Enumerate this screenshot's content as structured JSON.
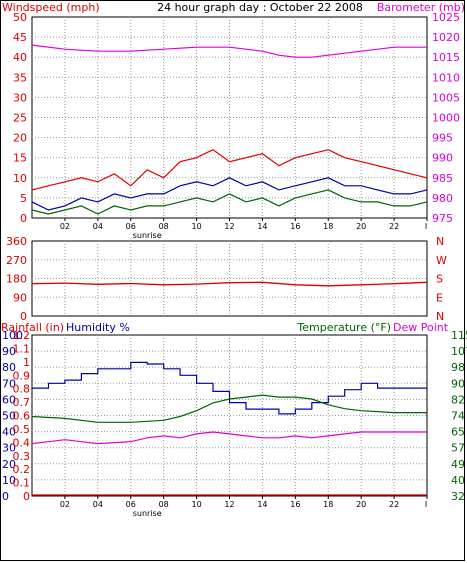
{
  "title": "24 hour graph day : October 22 2008",
  "x_ticks": [
    "02",
    "04",
    "06",
    "08",
    "10",
    "12",
    "14",
    "16",
    "18",
    "20",
    "22",
    "I"
  ],
  "sunrise_label": "sunrise",
  "chart_data": [
    {
      "type": "line",
      "title": "24 hour graph day : October 22 2008",
      "left_label": "Windspeed (mph)",
      "right_label": "Barometer (mb)",
      "left_ticks": [
        "0",
        "5",
        "10",
        "15",
        "20",
        "25",
        "30",
        "35",
        "40",
        "45",
        "50"
      ],
      "right_ticks": [
        "975",
        "980",
        "985",
        "990",
        "995",
        "1000",
        "1005",
        "1010",
        "1015",
        "1020",
        "1025"
      ],
      "ylim_left": [
        0,
        50
      ],
      "ylim_right": [
        975,
        1025
      ],
      "x_hours": [
        0,
        24
      ],
      "colors": {
        "gust": "#dd0000",
        "average": "#0000aa",
        "low": "#006600",
        "barometer": "#dd00dd"
      },
      "series": [
        {
          "axis": "right",
          "color": "#dd00dd",
          "x": [
            0,
            2,
            4,
            6,
            8,
            10,
            12,
            14,
            15,
            16,
            17,
            18,
            20,
            22,
            24
          ],
          "values": [
            1018,
            1017,
            1016.5,
            1016.5,
            1017,
            1017.5,
            1017.5,
            1016.5,
            1015.5,
            1015,
            1015,
            1015.5,
            1016.5,
            1017.5,
            1017.5
          ]
        },
        {
          "axis": "left",
          "color": "#dd0000",
          "x": [
            0,
            1,
            2,
            3,
            4,
            5,
            6,
            7,
            8,
            9,
            10,
            11,
            12,
            13,
            14,
            15,
            16,
            17,
            18,
            19,
            20,
            21,
            22,
            23,
            24
          ],
          "values": [
            7,
            8,
            9,
            10,
            9,
            11,
            8,
            12,
            10,
            14,
            15,
            17,
            14,
            15,
            16,
            13,
            15,
            16,
            17,
            15,
            14,
            13,
            12,
            11,
            10
          ]
        },
        {
          "axis": "left",
          "color": "#0000aa",
          "x": [
            0,
            1,
            2,
            3,
            4,
            5,
            6,
            7,
            8,
            9,
            10,
            11,
            12,
            13,
            14,
            15,
            16,
            17,
            18,
            19,
            20,
            21,
            22,
            23,
            24
          ],
          "values": [
            4,
            2,
            3,
            5,
            4,
            6,
            5,
            6,
            6,
            8,
            9,
            8,
            10,
            8,
            9,
            7,
            8,
            9,
            10,
            8,
            8,
            7,
            6,
            6,
            7
          ]
        },
        {
          "axis": "left",
          "color": "#006600",
          "x": [
            0,
            1,
            2,
            3,
            4,
            5,
            6,
            7,
            8,
            9,
            10,
            11,
            12,
            13,
            14,
            15,
            16,
            17,
            18,
            19,
            20,
            21,
            22,
            23,
            24
          ],
          "values": [
            2,
            1,
            2,
            3,
            1,
            3,
            2,
            3,
            3,
            4,
            5,
            4,
            6,
            4,
            5,
            3,
            5,
            6,
            7,
            5,
            4,
            4,
            3,
            3,
            4
          ]
        }
      ]
    },
    {
      "type": "line",
      "left_ticks": [
        "360",
        "270",
        "180",
        "90",
        "0"
      ],
      "right_ticks": [
        "N",
        "W",
        "S",
        "E",
        "N"
      ],
      "ylim": [
        0,
        360
      ],
      "x_hours": [
        0,
        24
      ],
      "series": [
        {
          "color": "#dd0000",
          "x": [
            0,
            2,
            4,
            6,
            8,
            10,
            12,
            14,
            16,
            18,
            20,
            22,
            24
          ],
          "values": [
            155,
            158,
            152,
            156,
            150,
            153,
            160,
            162,
            150,
            145,
            150,
            155,
            162
          ]
        }
      ]
    },
    {
      "type": "line",
      "left_label_1": "Rainfall (in)",
      "left_label_2": "Humidity %",
      "right_label_1": "Temperature (°F)",
      "right_label_2": "Dew Point",
      "humidity_ticks": [
        "0",
        "10",
        "20",
        "30",
        "40",
        "50",
        "60",
        "70",
        "80",
        "90",
        "100"
      ],
      "rain_ticks": [
        "0",
        "0.1",
        "0.2",
        "0.3",
        "0.4",
        "0.5",
        "0.6",
        "0.7",
        "0.8",
        "0.9",
        "1",
        "1.1",
        "1.2"
      ],
      "temp_ticks": [
        "32",
        "40",
        "49",
        "57",
        "65",
        "74",
        "82",
        "90",
        "98",
        "107",
        "115"
      ],
      "ylim_humidity": [
        0,
        100
      ],
      "ylim_temp": [
        32,
        115
      ],
      "x_hours": [
        0,
        24
      ],
      "series": [
        {
          "name": "Humidity %",
          "color": "#0000aa",
          "x": [
            0,
            1,
            1,
            2,
            2,
            3,
            3,
            4,
            4,
            6,
            6,
            7,
            7,
            8,
            8,
            9,
            9,
            10,
            10,
            11,
            11,
            12,
            12,
            13,
            13,
            15,
            15,
            16,
            16,
            17,
            17,
            18,
            18,
            19,
            19,
            20,
            20,
            21,
            21,
            24
          ],
          "values": [
            67,
            67,
            70,
            70,
            72,
            72,
            76,
            76,
            79,
            79,
            83,
            83,
            82,
            82,
            79,
            79,
            75,
            75,
            70,
            70,
            65,
            65,
            58,
            58,
            54,
            54,
            51,
            51,
            54,
            54,
            58,
            58,
            62,
            62,
            66,
            66,
            70,
            70,
            67,
            67
          ]
        },
        {
          "name": "Temperature (°F)",
          "color": "#006600",
          "x": [
            0,
            2,
            4,
            6,
            8,
            9,
            10,
            11,
            12,
            13,
            14,
            15,
            16,
            17,
            18,
            19,
            20,
            22,
            24
          ],
          "values": [
            73,
            72,
            70,
            70,
            71,
            73,
            76,
            80,
            82,
            83,
            84,
            83,
            83,
            82,
            79,
            77,
            76,
            75,
            75
          ]
        },
        {
          "name": "Dew Point",
          "color": "#dd00dd",
          "x": [
            0,
            1,
            2,
            3,
            4,
            6,
            7,
            8,
            9,
            10,
            11,
            12,
            13,
            14,
            15,
            16,
            17,
            18,
            19,
            20,
            22,
            24
          ],
          "values": [
            59,
            60,
            61,
            60,
            59,
            60,
            62,
            63,
            62,
            64,
            65,
            64,
            63,
            62,
            62,
            63,
            62,
            63,
            64,
            65,
            65,
            65
          ]
        },
        {
          "name": "Rainfall (in)",
          "color": "#dd0000",
          "x": [
            0,
            24
          ],
          "values": [
            0,
            0
          ]
        }
      ]
    }
  ]
}
